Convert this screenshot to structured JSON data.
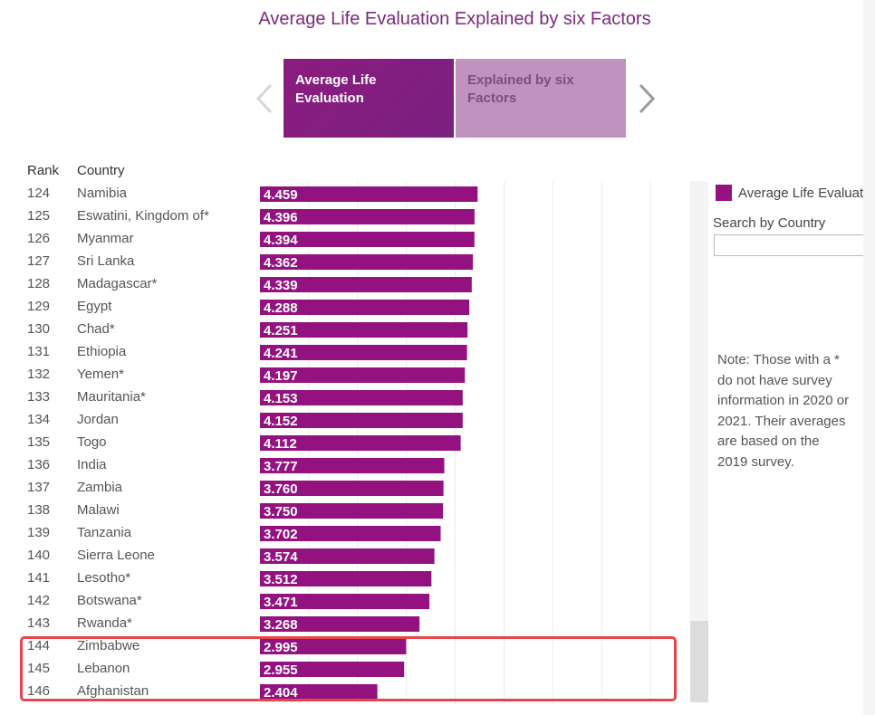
{
  "title": "Average Life Evaluation Explained by six Factors",
  "tabs": [
    {
      "label": "Average Life Evaluation",
      "active": true
    },
    {
      "label": "Explained by six Factors",
      "active": false
    }
  ],
  "columns": {
    "rank": "Rank",
    "country": "Country"
  },
  "legend": {
    "label": "Average Life Evaluation",
    "color": "#93127f"
  },
  "search": {
    "label": "Search by Country",
    "placeholder": ""
  },
  "note": "Note: Those with a * do not have survey information in 2020 or 2021. Their averages are based on the 2019 survey.",
  "colors": {
    "bar": "#93127f",
    "accent": "#7b2a7b",
    "highlight": "#e8454a"
  },
  "chart_data": {
    "type": "bar",
    "orientation": "horizontal",
    "title": "Average Life Evaluation Explained by six Factors",
    "xlim": [
      0,
      8
    ],
    "ranks": [
      124,
      125,
      126,
      127,
      128,
      129,
      130,
      131,
      132,
      133,
      134,
      135,
      136,
      137,
      138,
      139,
      140,
      141,
      142,
      143,
      144,
      145,
      146
    ],
    "categories": [
      "Namibia",
      "Eswatini, Kingdom of*",
      "Myanmar",
      "Sri Lanka",
      "Madagascar*",
      "Egypt",
      "Chad*",
      "Ethiopia",
      "Yemen*",
      "Mauritania*",
      "Jordan",
      "Togo",
      "India",
      "Zambia",
      "Malawi",
      "Tanzania",
      "Sierra Leone",
      "Lesotho*",
      "Botswana*",
      "Rwanda*",
      "Zimbabwe",
      "Lebanon",
      "Afghanistan"
    ],
    "values": [
      4.459,
      4.396,
      4.394,
      4.362,
      4.339,
      4.288,
      4.251,
      4.241,
      4.197,
      4.153,
      4.152,
      4.112,
      3.777,
      3.76,
      3.75,
      3.702,
      3.574,
      3.512,
      3.471,
      3.268,
      2.995,
      2.955,
      2.404
    ],
    "value_labels": [
      "4.459",
      "4.396",
      "4.394",
      "4.362",
      "4.339",
      "4.288",
      "4.251",
      "4.241",
      "4.197",
      "4.153",
      "4.152",
      "4.112",
      "3.777",
      "3.760",
      "3.750",
      "3.702",
      "3.574",
      "3.512",
      "3.471",
      "3.268",
      "2.995",
      "2.955",
      "2.404"
    ],
    "highlighted": [
      "Zimbabwe",
      "Lebanon",
      "Afghanistan"
    ]
  }
}
